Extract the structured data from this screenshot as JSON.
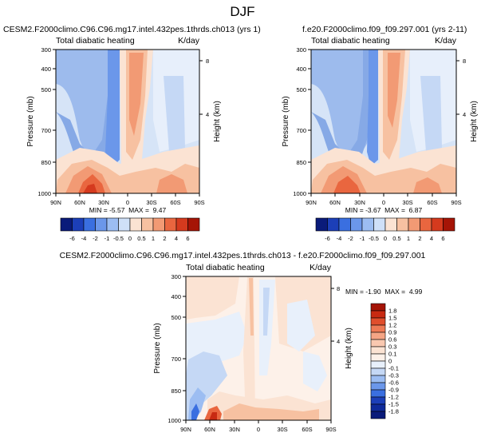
{
  "figure": {
    "title": "DJF"
  },
  "chart_data": [
    {
      "type": "heatmap",
      "title": "CESM2.F2000climo.C96.C96.mg17.intel.432pes.1thrds.ch013 (yrs 1)",
      "left_label": "Total diabatic heating",
      "right_label": "K/day",
      "xlabel": "",
      "ylabel": "Pressure (mb)",
      "y2label": "Height (km)",
      "x_ticks": [
        "90N",
        "60N",
        "30N",
        "0",
        "30S",
        "60S",
        "90S"
      ],
      "y_ticks": [
        "300",
        "400",
        "500",
        "700",
        "850",
        "1000"
      ],
      "y2_ticks": [
        "8",
        "4"
      ],
      "ylim": [
        1000,
        300
      ],
      "stats": "MIN = -5.57  MAX =  9.47",
      "colorbar_labels": [
        "-6",
        "-4",
        "-2",
        "-1",
        "-0.5",
        "0",
        "0.5",
        "1",
        "2",
        "4",
        "6"
      ]
    },
    {
      "type": "heatmap",
      "title": "f.e20.F2000climo.f09_f09.297.001 (yrs 2-11)",
      "left_label": "Total diabatic heating",
      "right_label": "K/day",
      "xlabel": "",
      "ylabel": "Pressure (mb)",
      "y2label": "Height (km)",
      "x_ticks": [
        "90N",
        "60N",
        "30N",
        "0",
        "30S",
        "60S",
        "90S"
      ],
      "y_ticks": [
        "300",
        "400",
        "500",
        "700",
        "850",
        "1000"
      ],
      "y2_ticks": [
        "8",
        "4"
      ],
      "ylim": [
        1000,
        300
      ],
      "stats": "MIN = -3.67  MAX =  6.87",
      "colorbar_labels": [
        "-6",
        "-4",
        "-2",
        "-1",
        "-0.5",
        "0",
        "0.5",
        "1",
        "2",
        "4",
        "6"
      ]
    },
    {
      "type": "heatmap",
      "title": "CESM2.F2000climo.C96.C96.mg17.intel.432pes.1thrds.ch013 - f.e20.F2000climo.f09_f09.297.001",
      "left_label": "Total diabatic heating",
      "right_label": "K/day",
      "xlabel": "",
      "ylabel": "Pressure (mb)",
      "y2label": "Height (km)",
      "x_ticks": [
        "90N",
        "60N",
        "30N",
        "0",
        "30S",
        "60S",
        "90S"
      ],
      "y_ticks": [
        "300",
        "400",
        "500",
        "700",
        "850",
        "1000"
      ],
      "y2_ticks": [
        "8",
        "4"
      ],
      "ylim": [
        1000,
        300
      ],
      "stats": "MIN = -1.90  MAX =  4.99",
      "colorbar_labels": [
        "1.8",
        "1.5",
        "1.2",
        "0.9",
        "0.6",
        "0.3",
        "0.1",
        "0",
        "-0.1",
        "-0.3",
        "-0.6",
        "-0.9",
        "-1.2",
        "-1.5",
        "-1.8"
      ]
    }
  ],
  "colors": {
    "top_bar": [
      "#0a1b7a",
      "#1c3fb8",
      "#3a6fe0",
      "#6b97ea",
      "#9cbdf2",
      "#cfe0f8",
      "#fbe3d3",
      "#f7c1a1",
      "#f29a74",
      "#e9663f",
      "#d53a1e",
      "#a51406"
    ],
    "diff_bar": [
      "#a51406",
      "#c82a12",
      "#e04e2c",
      "#ee7a55",
      "#f5a585",
      "#f9c8b0",
      "#fbe3d3",
      "#fdf1e9",
      "#e8f0fb",
      "#c5d8f5",
      "#9cbdf2",
      "#6b97ea",
      "#3a6fe0",
      "#1c3fb8",
      "#0f2a9a",
      "#0a1b7a"
    ]
  }
}
